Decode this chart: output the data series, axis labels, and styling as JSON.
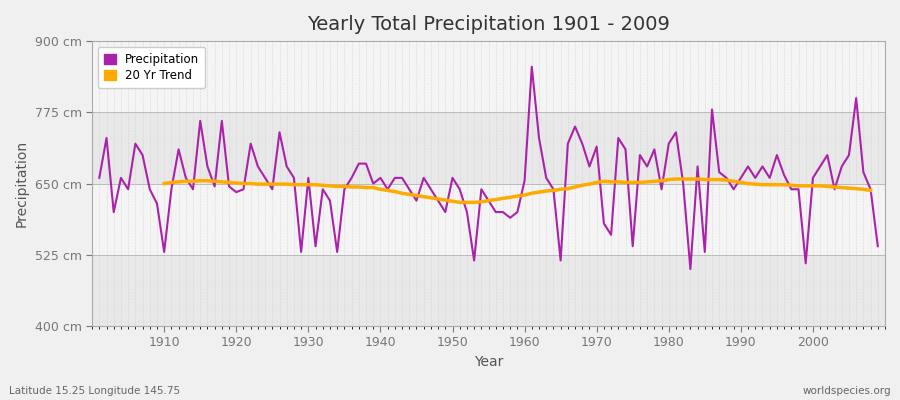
{
  "title": "Yearly Total Precipitation 1901 - 2009",
  "xlabel": "Year",
  "ylabel": "Precipitation",
  "fig_bg_color": "#f0f0f0",
  "plot_bg_color": "#ececec",
  "band_color1": "#e8e8e8",
  "band_color2": "#f4f4f4",
  "precip_color": "#aa22aa",
  "trend_color": "#ffaa00",
  "ylim": [
    400,
    900
  ],
  "ytick_vals": [
    400,
    525,
    650,
    775,
    900
  ],
  "ytick_labels": [
    "400 cm",
    "525 cm",
    "650 cm",
    "775 cm",
    "900 cm"
  ],
  "years": [
    1901,
    1902,
    1903,
    1904,
    1905,
    1906,
    1907,
    1908,
    1909,
    1910,
    1911,
    1912,
    1913,
    1914,
    1915,
    1916,
    1917,
    1918,
    1919,
    1920,
    1921,
    1922,
    1923,
    1924,
    1925,
    1926,
    1927,
    1928,
    1929,
    1930,
    1931,
    1932,
    1933,
    1934,
    1935,
    1936,
    1937,
    1938,
    1939,
    1940,
    1941,
    1942,
    1943,
    1944,
    1945,
    1946,
    1947,
    1948,
    1949,
    1950,
    1951,
    1952,
    1953,
    1954,
    1955,
    1956,
    1957,
    1958,
    1959,
    1960,
    1961,
    1962,
    1963,
    1964,
    1965,
    1966,
    1967,
    1968,
    1969,
    1970,
    1971,
    1972,
    1973,
    1974,
    1975,
    1976,
    1977,
    1978,
    1979,
    1980,
    1981,
    1982,
    1983,
    1984,
    1985,
    1986,
    1987,
    1988,
    1989,
    1990,
    1991,
    1992,
    1993,
    1994,
    1995,
    1996,
    1997,
    1998,
    1999,
    2000,
    2001,
    2002,
    2003,
    2004,
    2005,
    2006,
    2007,
    2008,
    2009
  ],
  "precip": [
    660,
    730,
    600,
    660,
    640,
    720,
    700,
    640,
    615,
    530,
    640,
    710,
    660,
    640,
    760,
    680,
    645,
    760,
    645,
    635,
    640,
    720,
    680,
    660,
    640,
    740,
    680,
    660,
    530,
    660,
    540,
    640,
    620,
    530,
    640,
    660,
    685,
    685,
    650,
    660,
    640,
    660,
    660,
    640,
    620,
    660,
    640,
    620,
    600,
    660,
    640,
    600,
    515,
    640,
    620,
    600,
    600,
    590,
    600,
    655,
    855,
    730,
    660,
    640,
    515,
    720,
    750,
    720,
    680,
    715,
    580,
    560,
    730,
    710,
    540,
    700,
    680,
    710,
    640,
    720,
    740,
    650,
    500,
    680,
    530,
    780,
    670,
    660,
    640,
    660,
    680,
    660,
    680,
    660,
    700,
    665,
    640,
    640,
    510,
    660,
    680,
    700,
    640,
    680,
    700,
    800,
    670,
    640,
    540
  ],
  "trend": [
    null,
    null,
    null,
    null,
    null,
    null,
    null,
    null,
    null,
    650,
    652,
    653,
    654,
    654,
    655,
    655,
    654,
    653,
    652,
    651,
    650,
    650,
    649,
    649,
    649,
    649,
    649,
    648,
    648,
    648,
    648,
    647,
    646,
    645,
    645,
    644,
    644,
    643,
    643,
    640,
    638,
    636,
    633,
    631,
    629,
    627,
    625,
    623,
    621,
    619,
    617,
    617,
    617,
    618,
    620,
    622,
    624,
    626,
    628,
    630,
    633,
    635,
    637,
    638,
    640,
    641,
    644,
    647,
    649,
    652,
    654,
    653,
    653,
    652,
    652,
    652,
    653,
    654,
    655,
    657,
    658,
    658,
    658,
    658,
    657,
    657,
    657,
    656,
    654,
    652,
    650,
    649,
    648,
    648,
    648,
    648,
    647,
    646,
    646,
    646,
    646,
    645,
    644,
    643,
    642,
    641,
    640,
    638,
    null
  ]
}
